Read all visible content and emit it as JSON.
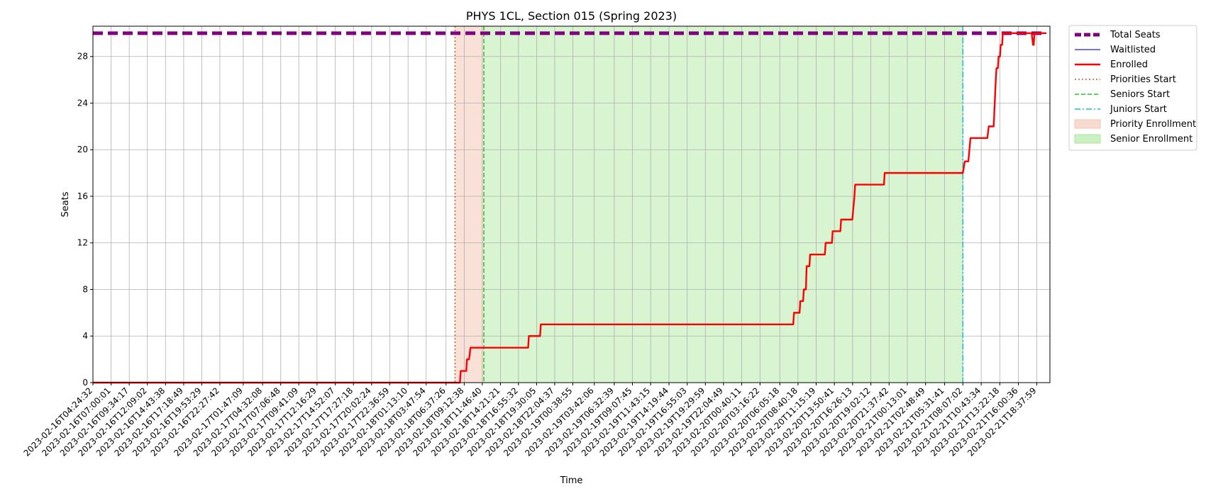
{
  "chart_data": {
    "type": "line",
    "title": "PHYS 1CL, Section 015 (Spring 2023)",
    "xlabel": "Time",
    "ylabel": "Seats",
    "ylim": [
      0,
      30.6
    ],
    "yticks": [
      0,
      4,
      8,
      12,
      16,
      20,
      24,
      28
    ],
    "grid": true,
    "legend": "outside top-right",
    "x_range": [
      "2023-02-16T04:24:32",
      "2023-02-21T20:30:00"
    ],
    "x_tick_labels": [
      "2023-02-16T04:24:32",
      "2023-02-16T07:00:01",
      "2023-02-16T09:34:17",
      "2023-02-16T12:09:02",
      "2023-02-16T14:43:38",
      "2023-02-16T17:18:49",
      "2023-02-16T19:53:29",
      "2023-02-16T22:27:42",
      "2023-02-17T01:47:09",
      "2023-02-17T04:32:08",
      "2023-02-17T07:06:48",
      "2023-02-17T09:41:09",
      "2023-02-17T12:16:29",
      "2023-02-17T14:52:07",
      "2023-02-17T17:27:18",
      "2023-02-17T20:02:24",
      "2023-02-17T22:36:59",
      "2023-02-18T01:13:10",
      "2023-02-18T03:47:54",
      "2023-02-18T06:37:26",
      "2023-02-18T09:12:38",
      "2023-02-18T11:46:40",
      "2023-02-18T14:21:21",
      "2023-02-18T16:55:32",
      "2023-02-18T19:30:05",
      "2023-02-18T22:04:37",
      "2023-02-19T00:38:55",
      "2023-02-19T03:42:06",
      "2023-02-19T06:32:39",
      "2023-02-19T09:07:45",
      "2023-02-19T11:43:15",
      "2023-02-19T14:19:44",
      "2023-02-19T16:55:03",
      "2023-02-19T19:29:59",
      "2023-02-19T22:04:49",
      "2023-02-20T00:40:11",
      "2023-02-20T03:16:22",
      "2023-02-20T06:05:18",
      "2023-02-20T08:40:18",
      "2023-02-20T11:15:19",
      "2023-02-20T13:50:41",
      "2023-02-20T16:26:13",
      "2023-02-20T19:02:12",
      "2023-02-20T21:37:42",
      "2023-02-21T00:13:01",
      "2023-02-21T02:48:49",
      "2023-02-21T05:31:41",
      "2023-02-21T08:07:02",
      "2023-02-21T10:43:34",
      "2023-02-21T13:22:18",
      "2023-02-21T16:00:36",
      "2023-02-21T18:37:59"
    ],
    "shaded_regions": [
      {
        "name": "Priority Enrollment",
        "start": "2023-02-18T07:54:00",
        "end": "2023-02-18T12:00:00",
        "color": "#f4c3b0",
        "opacity": 0.5
      },
      {
        "name": "Senior Enrollment",
        "start": "2023-02-18T12:00:00",
        "end": "2023-02-21T08:07:02",
        "color": "#a8e69a",
        "opacity": 0.45
      }
    ],
    "vlines": [
      {
        "name": "Priorities Start",
        "x": "2023-02-18T07:54:00",
        "color": "#d9541e",
        "style": "dotted"
      },
      {
        "name": "Seniors Start",
        "x": "2023-02-18T12:00:00",
        "color": "#2ec02e",
        "style": "dashed"
      },
      {
        "name": "Juniors Start",
        "x": "2023-02-21T08:07:02",
        "color": "#1bbfc9",
        "style": "dashdot"
      }
    ],
    "series": [
      {
        "name": "Total Seats",
        "color": "#800080",
        "style": "dashed-thick",
        "points": [
          [
            "2023-02-16T04:24:32",
            30
          ],
          [
            "2023-02-21T20:00:00",
            30
          ]
        ]
      },
      {
        "name": "Waitlisted",
        "color": "#2222dd",
        "style": "thin",
        "points": []
      },
      {
        "name": "Enrolled",
        "color": "#ff0000",
        "style": "solid",
        "points": [
          [
            "2023-02-16T04:24:32",
            0
          ],
          [
            "2023-02-18T08:36:00",
            0
          ],
          [
            "2023-02-18T08:42:00",
            1
          ],
          [
            "2023-02-18T09:30:00",
            1
          ],
          [
            "2023-02-18T09:36:00",
            2
          ],
          [
            "2023-02-18T09:54:00",
            2
          ],
          [
            "2023-02-18T10:06:00",
            3
          ],
          [
            "2023-02-18T18:18:00",
            3
          ],
          [
            "2023-02-18T18:24:00",
            4
          ],
          [
            "2023-02-18T20:00:00",
            4
          ],
          [
            "2023-02-18T20:06:00",
            5
          ],
          [
            "2023-02-20T08:00:00",
            5
          ],
          [
            "2023-02-20T08:06:00",
            6
          ],
          [
            "2023-02-20T08:54:00",
            6
          ],
          [
            "2023-02-20T09:00:00",
            7
          ],
          [
            "2023-02-20T09:24:00",
            7
          ],
          [
            "2023-02-20T09:30:00",
            8
          ],
          [
            "2023-02-20T09:48:00",
            8
          ],
          [
            "2023-02-20T09:54:00",
            10
          ],
          [
            "2023-02-20T10:18:00",
            10
          ],
          [
            "2023-02-20T10:24:00",
            11
          ],
          [
            "2023-02-20T12:30:00",
            11
          ],
          [
            "2023-02-20T12:36:00",
            12
          ],
          [
            "2023-02-20T13:30:00",
            12
          ],
          [
            "2023-02-20T13:36:00",
            13
          ],
          [
            "2023-02-20T14:42:00",
            13
          ],
          [
            "2023-02-20T14:48:00",
            14
          ],
          [
            "2023-02-20T16:24:00",
            14
          ],
          [
            "2023-02-20T16:42:00",
            16
          ],
          [
            "2023-02-20T16:48:00",
            17
          ],
          [
            "2023-02-20T20:54:00",
            17
          ],
          [
            "2023-02-20T21:00:00",
            18
          ],
          [
            "2023-02-21T08:07:00",
            18
          ],
          [
            "2023-02-21T08:24:00",
            19
          ],
          [
            "2023-02-21T08:54:00",
            19
          ],
          [
            "2023-02-21T09:12:00",
            21
          ],
          [
            "2023-02-21T11:36:00",
            21
          ],
          [
            "2023-02-21T11:48:00",
            22
          ],
          [
            "2023-02-21T12:30:00",
            22
          ],
          [
            "2023-02-21T12:48:00",
            26
          ],
          [
            "2023-02-21T12:54:00",
            27
          ],
          [
            "2023-02-21T13:06:00",
            27
          ],
          [
            "2023-02-21T13:12:00",
            28
          ],
          [
            "2023-02-21T13:24:00",
            28
          ],
          [
            "2023-02-21T13:30:00",
            29
          ],
          [
            "2023-02-21T13:42:00",
            29
          ],
          [
            "2023-02-21T13:48:00",
            30
          ],
          [
            "2023-02-21T17:54:00",
            30
          ],
          [
            "2023-02-21T18:06:00",
            29
          ],
          [
            "2023-02-21T18:12:00",
            29
          ],
          [
            "2023-02-21T18:18:00",
            30
          ],
          [
            "2023-02-21T20:00:00",
            30
          ]
        ]
      }
    ],
    "legend_entries": [
      {
        "label": "Total Seats",
        "kind": "line",
        "color": "#800080",
        "style": "dashed-thick"
      },
      {
        "label": "Waitlisted",
        "kind": "line",
        "color": "#2222dd",
        "style": "thin"
      },
      {
        "label": "Enrolled",
        "kind": "line",
        "color": "#ff0000",
        "style": "solid"
      },
      {
        "label": "Priorities Start",
        "kind": "line",
        "color": "#d9541e",
        "style": "dotted"
      },
      {
        "label": "Seniors Start",
        "kind": "line",
        "color": "#2ec02e",
        "style": "dashed"
      },
      {
        "label": "Juniors Start",
        "kind": "line",
        "color": "#1bbfc9",
        "style": "dashdot"
      },
      {
        "label": "Priority Enrollment",
        "kind": "patch",
        "color": "#f4c3b0"
      },
      {
        "label": "Senior Enrollment",
        "kind": "patch",
        "color": "#a8e69a"
      }
    ]
  }
}
